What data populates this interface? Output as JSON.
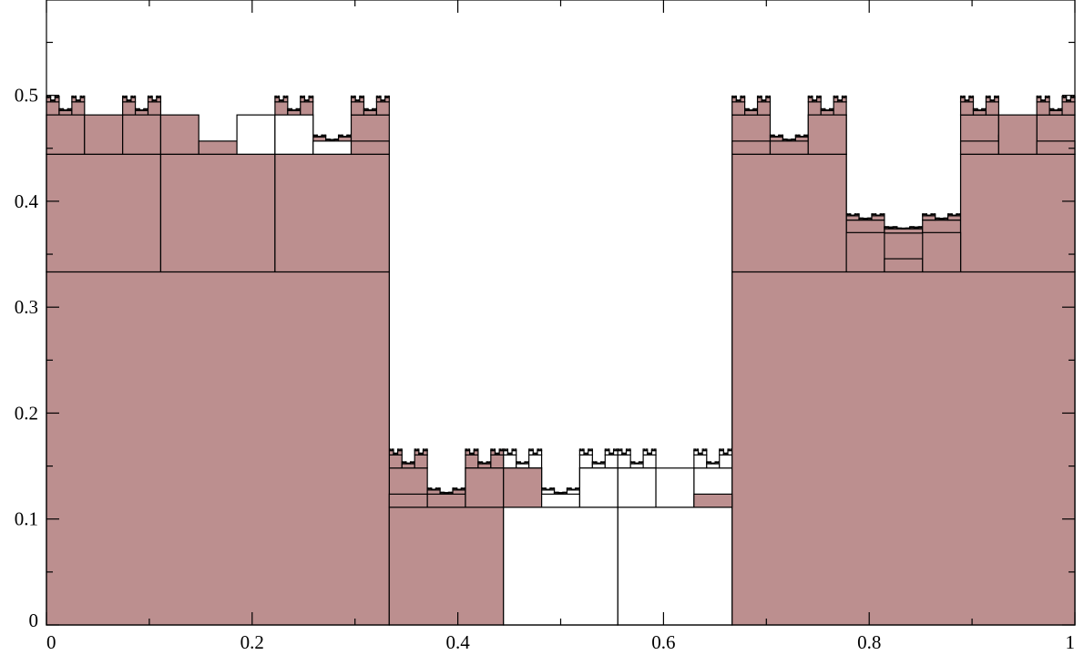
{
  "chart_data": {
    "type": "bar",
    "title": "",
    "xlabel": "",
    "ylabel": "",
    "xlim": [
      0,
      1
    ],
    "ylim": [
      0,
      0.59
    ],
    "x_ticks": [
      0,
      0.2,
      0.4,
      0.6,
      0.8,
      1
    ],
    "x_tick_labels": [
      "0",
      "0.2",
      "0.4",
      "0.6",
      "0.8",
      "1"
    ],
    "y_ticks": [
      0,
      0.1,
      0.2,
      0.3,
      0.4,
      0.5
    ],
    "y_tick_labels": [
      "0",
      "0.1",
      "0.2",
      "0.3",
      "0.4",
      "0.5"
    ],
    "grid": false,
    "legend": "none",
    "colors": {
      "filled": "#bc8f8f",
      "empty": "#ffffff",
      "stroke": "#000000"
    },
    "recursive_rule": {
      "description": "Each box [x0,x1] spanning a base height is split into 3 children of width w/3; child heights add increments of size inc/3 with multipliers.",
      "depth": 6,
      "root": {
        "x0": 0,
        "x1": 1,
        "base": 0,
        "increment": 0.3333
      },
      "child_pattern": [
        {
          "multiplier": 1,
          "filled": true
        },
        {
          "multiplier": 0,
          "filled": false
        },
        {
          "multiplier": 1,
          "filled": true
        }
      ]
    },
    "bars": [
      {
        "x0": 0,
        "x1": 0.3333,
        "y0": 0,
        "y1": 0.3333,
        "filled": true
      },
      {
        "x0": 0.3333,
        "x1": 0.4444,
        "y0": 0,
        "y1": 0.1111,
        "filled": true
      },
      {
        "x0": 0.4444,
        "x1": 0.5556,
        "y0": 0,
        "y1": 0.1111,
        "filled": false
      },
      {
        "x0": 0.5556,
        "x1": 0.6667,
        "y0": 0,
        "y1": 0.1111,
        "filled": false
      },
      {
        "x0": 0.6667,
        "x1": 1,
        "y0": 0,
        "y1": 0.3333,
        "filled": true
      },
      {
        "x0": 0,
        "x1": 0.1111,
        "y0": 0.3333,
        "y1": 0.4444,
        "filled": true
      },
      {
        "x0": 0.1111,
        "x1": 0.2222,
        "y0": 0.3333,
        "y1": 0.4444,
        "filled": true
      },
      {
        "x0": 0.2222,
        "x1": 0.3333,
        "y0": 0.3333,
        "y1": 0.4444,
        "filled": true
      },
      {
        "x0": 0.6667,
        "x1": 0.7778,
        "y0": 0.3333,
        "y1": 0.4444,
        "filled": true
      },
      {
        "x0": 0.7778,
        "x1": 0.8889,
        "y0": 0.3333,
        "y1": 0.3333,
        "filled": true
      },
      {
        "x0": 0.8889,
        "x1": 1,
        "y0": 0.3333,
        "y1": 0.4444,
        "filled": true
      },
      {
        "x0": 0,
        "x1": 0.037,
        "y0": 0.4444,
        "y1": 0.4815,
        "filled": true
      },
      {
        "x0": 0.037,
        "x1": 0.0741,
        "y0": 0.4444,
        "y1": 0.4815,
        "filled": true
      },
      {
        "x0": 0.0741,
        "x1": 0.1111,
        "y0": 0.4444,
        "y1": 0.4815,
        "filled": true
      },
      {
        "x0": 0.1111,
        "x1": 0.1481,
        "y0": 0.4444,
        "y1": 0.4815,
        "filled": true
      },
      {
        "x0": 0.1481,
        "x1": 0.1852,
        "y0": 0.4444,
        "y1": 0.4568,
        "filled": true
      },
      {
        "x0": 0.1852,
        "x1": 0.2222,
        "y0": 0.4444,
        "y1": 0.4815,
        "filled": false
      },
      {
        "x0": 0.2222,
        "x1": 0.2593,
        "y0": 0.4444,
        "y1": 0.4815,
        "filled": false
      },
      {
        "x0": 0.2593,
        "x1": 0.2963,
        "y0": 0.4444,
        "y1": 0.4568,
        "filled": false
      },
      {
        "x0": 0.2963,
        "x1": 0.3333,
        "y0": 0.4444,
        "y1": 0.4568,
        "filled": true
      },
      {
        "x0": 0.7778,
        "x1": 0.8148,
        "y0": 0.3333,
        "y1": 0.3704,
        "filled": true
      },
      {
        "x0": 0.8148,
        "x1": 0.8519,
        "y0": 0.3333,
        "y1": 0.3457,
        "filled": true
      },
      {
        "x0": 0.8519,
        "x1": 0.8889,
        "y0": 0.3333,
        "y1": 0.3704,
        "filled": true
      },
      {
        "x0": 0.6667,
        "x1": 0.7037,
        "y0": 0.4444,
        "y1": 0.4568,
        "filled": true
      },
      {
        "x0": 0.7037,
        "x1": 0.7407,
        "y0": 0.4444,
        "y1": 0.4568,
        "filled": true
      },
      {
        "x0": 0.7407,
        "x1": 0.7778,
        "y0": 0.4444,
        "y1": 0.4815,
        "filled": true
      },
      {
        "x0": 0.8889,
        "x1": 0.9259,
        "y0": 0.4444,
        "y1": 0.4568,
        "filled": true
      },
      {
        "x0": 0.9259,
        "x1": 0.963,
        "y0": 0.4444,
        "y1": 0.4815,
        "filled": true
      },
      {
        "x0": 0.963,
        "x1": 1,
        "y0": 0.4444,
        "y1": 0.4568,
        "filled": true
      },
      {
        "x0": 0.3333,
        "x1": 0.3704,
        "y0": 0.1111,
        "y1": 0.1235,
        "filled": true
      },
      {
        "x0": 0.3704,
        "x1": 0.4074,
        "y0": 0.1111,
        "y1": 0.1235,
        "filled": true
      },
      {
        "x0": 0.4074,
        "x1": 0.4444,
        "y0": 0.1111,
        "y1": 0.1481,
        "filled": true
      },
      {
        "x0": 0.4444,
        "x1": 0.4815,
        "y0": 0.1111,
        "y1": 0.1481,
        "filled": true
      },
      {
        "x0": 0.4815,
        "x1": 0.5185,
        "y0": 0.1111,
        "y1": 0.1235,
        "filled": false
      },
      {
        "x0": 0.5185,
        "x1": 0.5556,
        "y0": 0.1111,
        "y1": 0.1481,
        "filled": false
      },
      {
        "x0": 0.5556,
        "x1": 0.5926,
        "y0": 0.1111,
        "y1": 0.1481,
        "filled": false
      },
      {
        "x0": 0.5926,
        "x1": 0.6296,
        "y0": 0.1111,
        "y1": 0.1481,
        "filled": false
      },
      {
        "x0": 0.6296,
        "x1": 0.6667,
        "y0": 0.1111,
        "y1": 0.1235,
        "filled": true
      }
    ]
  }
}
